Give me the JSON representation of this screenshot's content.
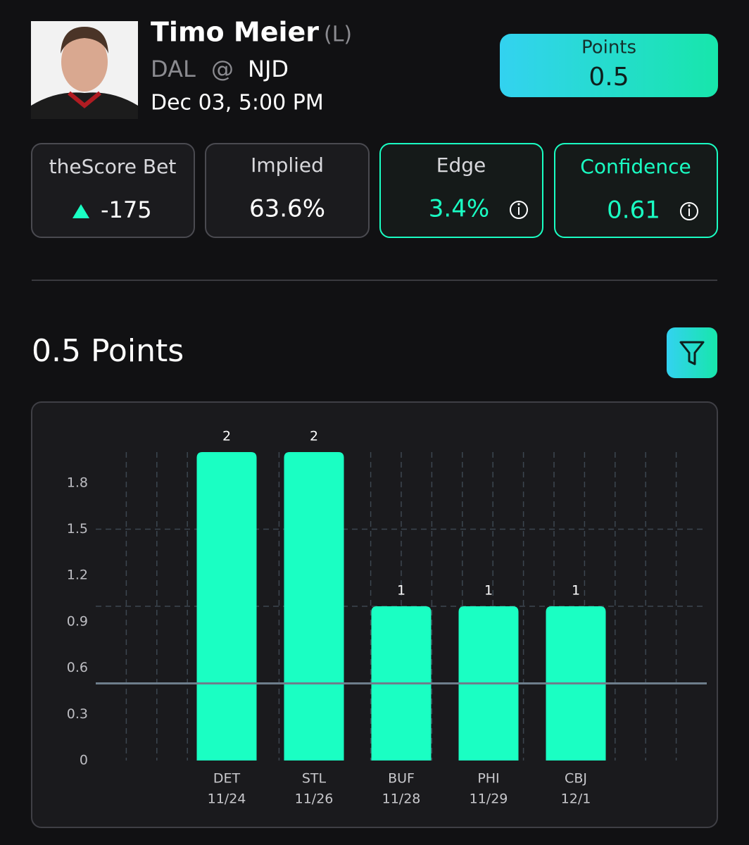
{
  "header": {
    "player": "Timo Meier",
    "position": "(L)",
    "away": "DAL",
    "at": "@",
    "home": "NJD",
    "datetime": "Dec 03, 5:00 PM",
    "line_label": "Points",
    "line_value": 0.5
  },
  "stats": [
    {
      "label": "theScore Bet",
      "value": "-175"
    },
    {
      "label": "Implied",
      "value": "63.6%"
    },
    {
      "label": "Edge",
      "value": "3.4%"
    },
    {
      "label": "Confidence",
      "value": "0.61"
    }
  ],
  "chart_data": {
    "type": "bar",
    "title": "0.5 Points",
    "categories": [
      null,
      "DET",
      "STL",
      "BUF",
      "PHI",
      "CBJ",
      null
    ],
    "dates": [
      null,
      "11/24",
      "11/26",
      "11/28",
      "11/29",
      "12/1",
      null
    ],
    "values": [
      null,
      2,
      2,
      1,
      1,
      1,
      null
    ],
    "color": "#1affc3",
    "ylim": [
      0,
      2
    ],
    "yticks": [
      0,
      0.3,
      0.6,
      0.9,
      1.2,
      1.5,
      1.8
    ],
    "hgrid": [
      1,
      1.5
    ],
    "grid": true
  }
}
